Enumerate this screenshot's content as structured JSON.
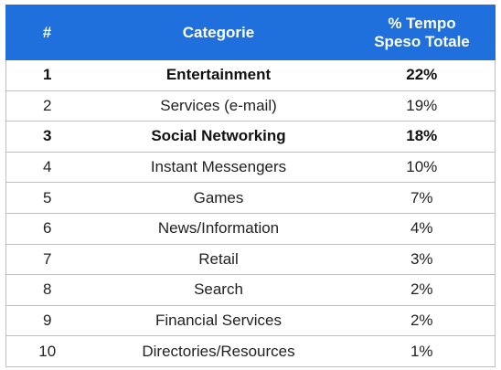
{
  "chart_data": {
    "type": "table",
    "columns": [
      "#",
      "Categorie",
      "% Tempo Speso Totale"
    ],
    "header_lines": {
      "col3": [
        "% Tempo",
        "Speso Totale"
      ]
    },
    "rows": [
      {
        "rank": "1",
        "category": "Entertainment",
        "share": "22%",
        "bold": true
      },
      {
        "rank": "2",
        "category": "Services (e-mail)",
        "share": "19%",
        "bold": false
      },
      {
        "rank": "3",
        "category": "Social Networking",
        "share": "18%",
        "bold": true
      },
      {
        "rank": "4",
        "category": "Instant Messengers",
        "share": "10%",
        "bold": false
      },
      {
        "rank": "5",
        "category": "Games",
        "share": "7%",
        "bold": false
      },
      {
        "rank": "6",
        "category": "News/Information",
        "share": "4%",
        "bold": false
      },
      {
        "rank": "7",
        "category": "Retail",
        "share": "3%",
        "bold": false
      },
      {
        "rank": "8",
        "category": "Search",
        "share": "2%",
        "bold": false
      },
      {
        "rank": "9",
        "category": "Financial Services",
        "share": "2%",
        "bold": false
      },
      {
        "rank": "10",
        "category": "Directories/Resources",
        "share": "1%",
        "bold": false
      }
    ],
    "values": [
      22,
      19,
      18,
      10,
      7,
      4,
      3,
      2,
      2,
      1
    ],
    "header_color": "#1f6fdc",
    "header_text_color": "#ffffff",
    "border_color": "#bfbfbf"
  }
}
